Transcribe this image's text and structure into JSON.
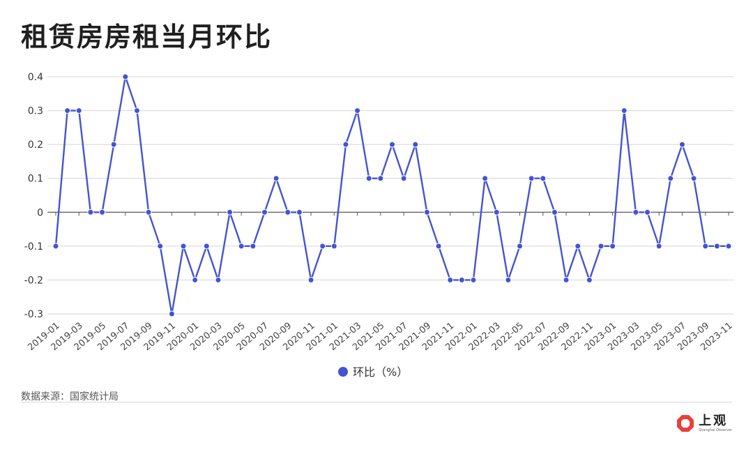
{
  "title": "租赁房房租当月环比",
  "source": "数据来源：国家统计局",
  "logo": {
    "main": "上观",
    "sub": "Shanghai Observer"
  },
  "colors": {
    "line": "#4453d3",
    "grid": "#d4d4d4",
    "axis": "#555555",
    "logo_red": "#e8403a"
  },
  "chart_data": {
    "type": "line",
    "title": "租赁房房租当月环比",
    "xlabel": "",
    "ylabel": "",
    "ylim": [
      -0.3,
      0.4
    ],
    "yticks": [
      "0.4",
      "0.3",
      "0.2",
      "0.1",
      "0",
      "-0.1",
      "-0.2",
      "-0.3"
    ],
    "ytick_values": [
      0.4,
      0.3,
      0.2,
      0.1,
      0,
      -0.1,
      -0.2,
      -0.3
    ],
    "x": [
      "2019-01",
      "2019-02",
      "2019-03",
      "2019-04",
      "2019-05",
      "2019-06",
      "2019-07",
      "2019-08",
      "2019-09",
      "2019-10",
      "2019-11",
      "2019-12",
      "2020-01",
      "2020-02",
      "2020-03",
      "2020-04",
      "2020-05",
      "2020-06",
      "2020-07",
      "2020-08",
      "2020-09",
      "2020-10",
      "2020-11",
      "2020-12",
      "2021-01",
      "2021-02",
      "2021-03",
      "2021-04",
      "2021-05",
      "2021-06",
      "2021-07",
      "2021-08",
      "2021-09",
      "2021-10",
      "2021-11",
      "2021-12",
      "2022-01",
      "2022-02",
      "2022-03",
      "2022-04",
      "2022-05",
      "2022-06",
      "2022-07",
      "2022-08",
      "2022-09",
      "2022-10",
      "2022-11",
      "2022-12",
      "2023-01",
      "2023-02",
      "2023-03",
      "2023-04",
      "2023-05",
      "2023-06",
      "2023-07",
      "2023-08",
      "2023-09",
      "2023-10",
      "2023-11"
    ],
    "xtick_labels": [
      "2019-01",
      "2019-03",
      "2019-05",
      "2019-07",
      "2019-09",
      "2019-11",
      "2020-01",
      "2020-03",
      "2020-05",
      "2020-07",
      "2020-09",
      "2020-11",
      "2021-01",
      "2021-03",
      "2021-05",
      "2021-07",
      "2021-09",
      "2021-11",
      "2022-01",
      "2022-03",
      "2022-05",
      "2022-07",
      "2022-09",
      "2022-11",
      "2023-01",
      "2023-03",
      "2023-05",
      "2023-07",
      "2023-09",
      "2023-11"
    ],
    "series": [
      {
        "name": "环比（%）",
        "values": [
          -0.1,
          0.3,
          0.3,
          0,
          0,
          0.2,
          0.4,
          0.3,
          0,
          -0.1,
          -0.3,
          -0.1,
          -0.2,
          -0.1,
          -0.2,
          0,
          -0.1,
          -0.1,
          0,
          0.1,
          0,
          0,
          -0.2,
          -0.1,
          -0.1,
          0.2,
          0.3,
          0.1,
          0.1,
          0.2,
          0.1,
          0.2,
          0,
          -0.1,
          -0.2,
          -0.2,
          -0.2,
          0.1,
          0,
          -0.2,
          -0.1,
          0.1,
          0.1,
          0,
          -0.2,
          -0.1,
          -0.2,
          -0.1,
          -0.1,
          0.3,
          0,
          0,
          -0.1,
          0.1,
          0.2,
          0.1,
          -0.1,
          -0.1,
          -0.1
        ]
      }
    ],
    "grid": true,
    "legend_position": "bottom-center"
  }
}
